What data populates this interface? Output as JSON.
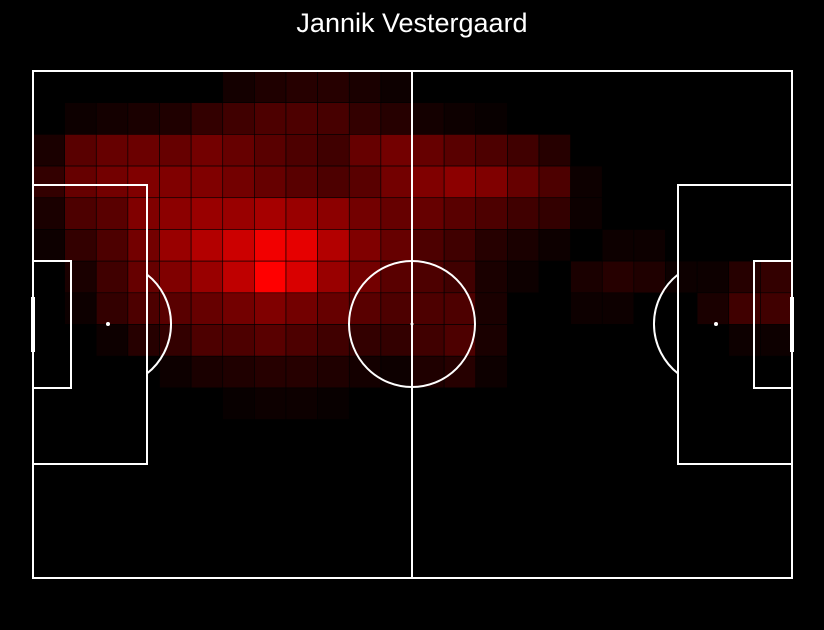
{
  "chart_data": {
    "type": "heatmap",
    "title": "Jannik Vestergaard",
    "color": "#ff0000",
    "values": [
      [
        0,
        0,
        0,
        0,
        0,
        0,
        0.08,
        0.12,
        0.15,
        0.15,
        0.1,
        0.05,
        0,
        0,
        0,
        0,
        0,
        0,
        0,
        0,
        0,
        0,
        0,
        0
      ],
      [
        0,
        0.05,
        0.08,
        0.1,
        0.12,
        0.2,
        0.25,
        0.3,
        0.3,
        0.28,
        0.2,
        0.15,
        0.08,
        0.05,
        0.03,
        0,
        0,
        0,
        0,
        0,
        0,
        0,
        0,
        0
      ],
      [
        0.1,
        0.35,
        0.4,
        0.42,
        0.4,
        0.45,
        0.4,
        0.35,
        0.3,
        0.25,
        0.4,
        0.45,
        0.4,
        0.35,
        0.3,
        0.25,
        0.15,
        0,
        0,
        0,
        0,
        0,
        0,
        0
      ],
      [
        0.2,
        0.4,
        0.45,
        0.5,
        0.5,
        0.5,
        0.45,
        0.4,
        0.35,
        0.3,
        0.35,
        0.45,
        0.5,
        0.55,
        0.5,
        0.4,
        0.3,
        0.05,
        0,
        0,
        0,
        0,
        0,
        0
      ],
      [
        0.1,
        0.3,
        0.35,
        0.5,
        0.55,
        0.6,
        0.6,
        0.65,
        0.6,
        0.55,
        0.45,
        0.4,
        0.4,
        0.35,
        0.3,
        0.25,
        0.2,
        0.05,
        0,
        0,
        0,
        0,
        0,
        0
      ],
      [
        0.05,
        0.2,
        0.3,
        0.45,
        0.6,
        0.7,
        0.8,
        0.95,
        0.9,
        0.7,
        0.5,
        0.4,
        0.3,
        0.25,
        0.15,
        0.1,
        0.05,
        0,
        0.05,
        0.05,
        0,
        0,
        0,
        0
      ],
      [
        0,
        0.1,
        0.25,
        0.4,
        0.5,
        0.6,
        0.75,
        1,
        0.85,
        0.6,
        0.45,
        0.35,
        0.3,
        0.25,
        0.1,
        0.05,
        0,
        0.1,
        0.15,
        0.12,
        0.05,
        0.05,
        0.15,
        0.2
      ],
      [
        0,
        0.05,
        0.2,
        0.3,
        0.35,
        0.4,
        0.45,
        0.5,
        0.45,
        0.4,
        0.35,
        0.3,
        0.3,
        0.3,
        0.1,
        0,
        0,
        0.05,
        0.05,
        0,
        0,
        0.1,
        0.25,
        0.25
      ],
      [
        0,
        0,
        0.05,
        0.15,
        0.2,
        0.3,
        0.3,
        0.35,
        0.3,
        0.25,
        0.2,
        0.2,
        0.25,
        0.3,
        0.1,
        0,
        0,
        0,
        0,
        0,
        0,
        0,
        0.05,
        0.05
      ],
      [
        0,
        0,
        0,
        0,
        0.05,
        0.1,
        0.12,
        0.15,
        0.15,
        0.12,
        0.08,
        0.05,
        0.12,
        0.15,
        0.05,
        0,
        0,
        0,
        0,
        0,
        0,
        0,
        0,
        0
      ],
      [
        0,
        0,
        0,
        0,
        0,
        0,
        0.03,
        0.05,
        0.05,
        0.03,
        0,
        0,
        0,
        0,
        0,
        0,
        0,
        0,
        0,
        0,
        0,
        0,
        0,
        0
      ],
      [
        0,
        0,
        0,
        0,
        0,
        0,
        0,
        0,
        0,
        0,
        0,
        0,
        0,
        0,
        0,
        0,
        0,
        0,
        0,
        0,
        0,
        0,
        0,
        0
      ],
      [
        0,
        0,
        0,
        0,
        0,
        0,
        0,
        0,
        0,
        0,
        0,
        0,
        0,
        0,
        0,
        0,
        0,
        0,
        0,
        0,
        0,
        0,
        0,
        0
      ],
      [
        0,
        0,
        0,
        0,
        0,
        0,
        0,
        0,
        0,
        0,
        0,
        0,
        0,
        0,
        0,
        0,
        0,
        0,
        0,
        0,
        0,
        0,
        0,
        0
      ],
      [
        0,
        0,
        0,
        0,
        0,
        0,
        0,
        0,
        0,
        0,
        0,
        0,
        0,
        0,
        0,
        0,
        0,
        0,
        0,
        0,
        0,
        0,
        0,
        0
      ],
      [
        0,
        0,
        0,
        0,
        0,
        0,
        0,
        0,
        0,
        0,
        0,
        0,
        0,
        0,
        0,
        0,
        0,
        0,
        0,
        0,
        0,
        0,
        0,
        0
      ]
    ]
  }
}
